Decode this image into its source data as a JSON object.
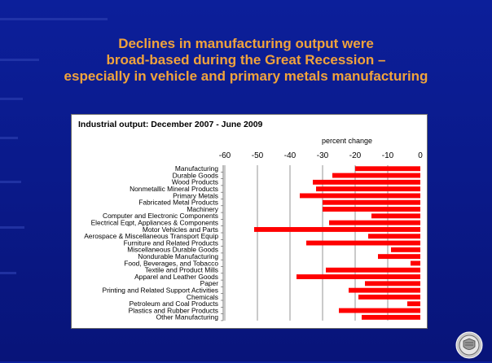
{
  "slide": {
    "title_lines": [
      "Declines in manufacturing output were",
      "broad-based during the Great Recession –",
      "especially in vehicle and primary metals manufacturing"
    ]
  },
  "chart_data": {
    "type": "bar",
    "orientation": "horizontal",
    "title": "Industrial output: December 2007 - June 2009",
    "axis_title": "percent change",
    "xlim": [
      -60,
      0
    ],
    "ticks": [
      -60,
      -50,
      -40,
      -30,
      -20,
      -10,
      0
    ],
    "grid": true,
    "bar_color": "#ff0000",
    "categories": [
      "Manufacturing",
      "Durable Goods",
      "Wood Products",
      "Nonmetallic Mineral Products",
      "Primary Metals",
      "Fabricated Metal Products",
      "Machinery",
      "Computer and Electronic Components",
      "Electrical Eqpt, Appliances & Components",
      "Motor Vehicles and Parts",
      "Aerospace & Miscellaneous Transport Equip",
      "Furniture and Related Products",
      "Miscellaneous Durable Goods",
      "Nondurable Manufacturing",
      "Food, Beverages, and Tobacco",
      "Textile and Product Mills",
      "Apparel and Leather Goods",
      "Paper",
      "Printing and Related Support Activities",
      "Chemicals",
      "Petroleum and Coal Products",
      "Plastics and Rubber Products",
      "Other Manufacturing"
    ],
    "values": [
      -20,
      -27,
      -33,
      -32,
      -37,
      -30,
      -30,
      -15,
      -28,
      -51,
      -16,
      -35,
      -9,
      -13,
      -3,
      -29,
      -38,
      -17,
      -22,
      -19,
      -4,
      -25,
      -18
    ]
  },
  "colors": {
    "background": "#0a1a8c",
    "title": "#f0a33c",
    "bars": "#ff0000"
  },
  "seal": {
    "icon": "federal-reserve-seal-icon"
  }
}
